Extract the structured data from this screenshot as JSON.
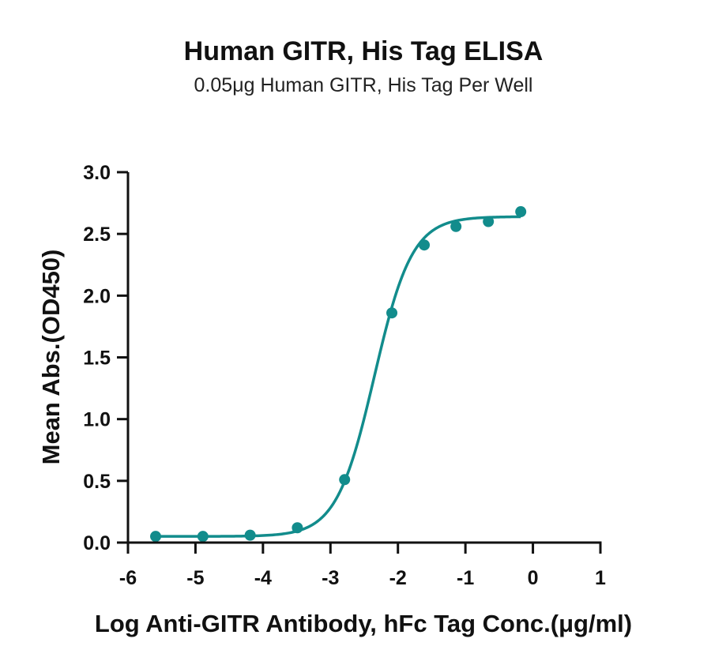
{
  "chart_data": {
    "type": "scatter",
    "title": "Human GITR, His Tag ELISA",
    "subtitle": "0.05μg Human GITR, His Tag Per Well",
    "xlabel": "Log Anti-GITR Antibody, hFc Tag Conc.(μg/ml)",
    "ylabel": "Mean Abs.(OD450)",
    "xlim": [
      -6,
      1
    ],
    "ylim": [
      0,
      3.0
    ],
    "x_ticks": [
      "-6",
      "-5",
      "-4",
      "-3",
      "-2",
      "-1",
      "0",
      "1"
    ],
    "y_ticks": [
      "0.0",
      "0.5",
      "1.0",
      "1.5",
      "2.0",
      "2.5",
      "3.0"
    ],
    "grid": false,
    "legend": "none",
    "color": "#128c8c",
    "series": [
      {
        "x": [
          -5.59,
          -4.89,
          -4.19,
          -3.49,
          -2.79,
          -2.09,
          -1.61,
          -1.14,
          -0.66,
          -0.18
        ],
        "y": [
          0.05,
          0.05,
          0.06,
          0.12,
          0.51,
          1.86,
          2.41,
          2.56,
          2.6,
          2.68
        ]
      }
    ],
    "fit_curve": {
      "model": "4PL",
      "bottom": 0.05,
      "top": 2.64,
      "log_ec50": -2.35,
      "hill_slope": 1.55
    }
  }
}
